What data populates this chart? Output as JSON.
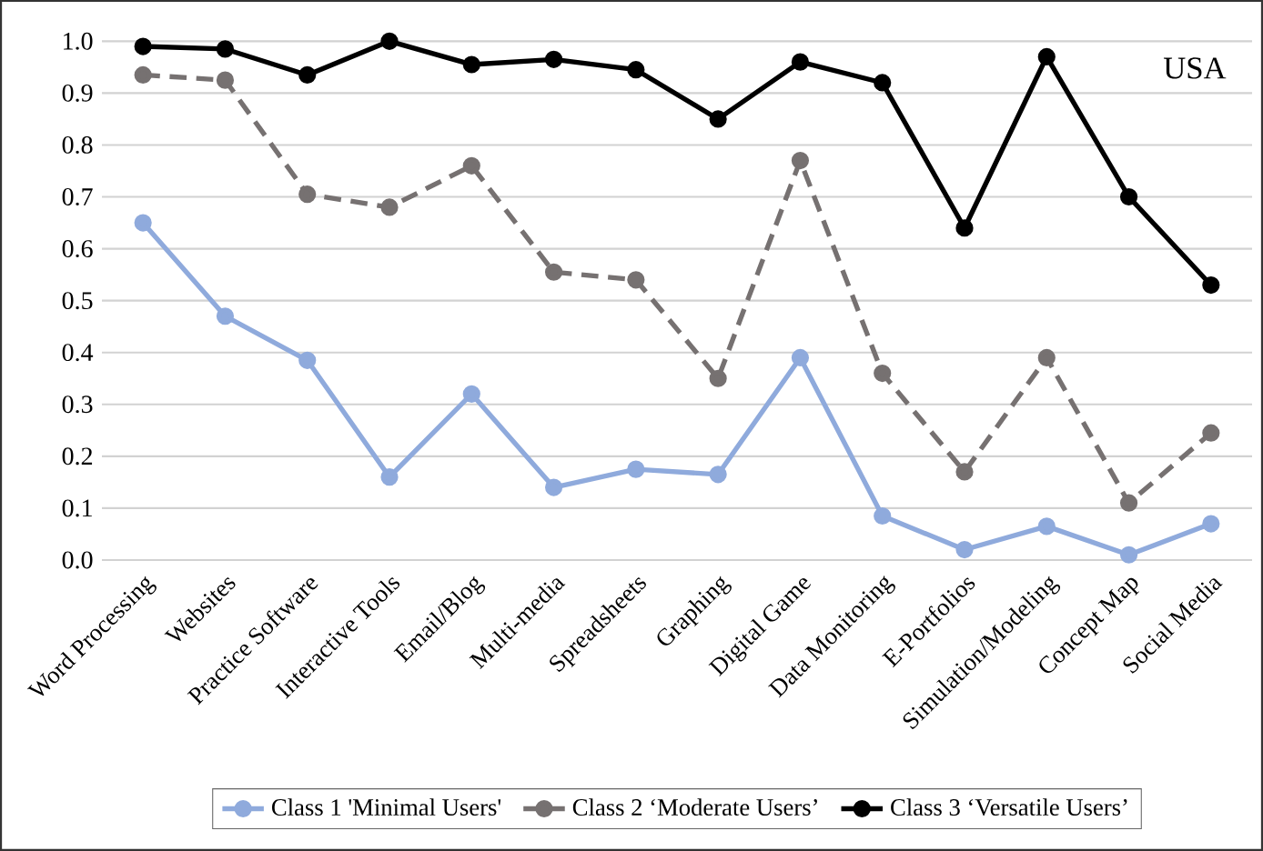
{
  "chart_data": {
    "type": "line",
    "categories": [
      "Word Processing",
      "Websites",
      "Practice Software",
      "Interactive Tools",
      "Email/Blog",
      "Multi-media",
      "Spreadsheets",
      "Graphing",
      "Digital Game",
      "Data Monitoring",
      "E-Portfolios",
      "Simulation/Modeling",
      "Concept Map",
      "Social Media"
    ],
    "series": [
      {
        "name": "Class 1 'Minimal Users'",
        "color": "#8faadc",
        "line_style": "solid",
        "values": [
          0.65,
          0.47,
          0.385,
          0.16,
          0.32,
          0.14,
          0.175,
          0.165,
          0.39,
          0.085,
          0.02,
          0.065,
          0.01,
          0.07
        ]
      },
      {
        "name": "Class 2 ‘Moderate Users’",
        "color": "#767171",
        "line_style": "dashed",
        "values": [
          0.935,
          0.925,
          0.705,
          0.68,
          0.76,
          0.555,
          0.54,
          0.35,
          0.77,
          0.36,
          0.17,
          0.39,
          0.11,
          0.245
        ]
      },
      {
        "name": "Class 3 ‘Versatile Users’",
        "color": "#000000",
        "line_style": "solid",
        "values": [
          0.99,
          0.985,
          0.935,
          1.0,
          0.955,
          0.965,
          0.945,
          0.85,
          0.96,
          0.92,
          0.64,
          0.97,
          0.7,
          0.53
        ]
      }
    ],
    "ylim": [
      0,
      1.0
    ],
    "yticks": [
      {
        "value": 0,
        "label": "0.0"
      },
      {
        "value": 0.1,
        "label": "0.1"
      },
      {
        "value": 0.2,
        "label": "0.2"
      },
      {
        "value": 0.3,
        "label": "0.3"
      },
      {
        "value": 0.4,
        "label": "0.4"
      },
      {
        "value": 0.5,
        "label": "0.5"
      },
      {
        "value": 0.6,
        "label": "0.6"
      },
      {
        "value": 0.7,
        "label": "0.7"
      },
      {
        "value": 0.8,
        "label": "0.8"
      },
      {
        "value": 0.9,
        "label": "0.9"
      },
      {
        "value": 1.0,
        "label": "1.0"
      }
    ],
    "grid": "y",
    "marker": "circle",
    "legend": "bottom",
    "annotations": [
      "USA"
    ]
  }
}
